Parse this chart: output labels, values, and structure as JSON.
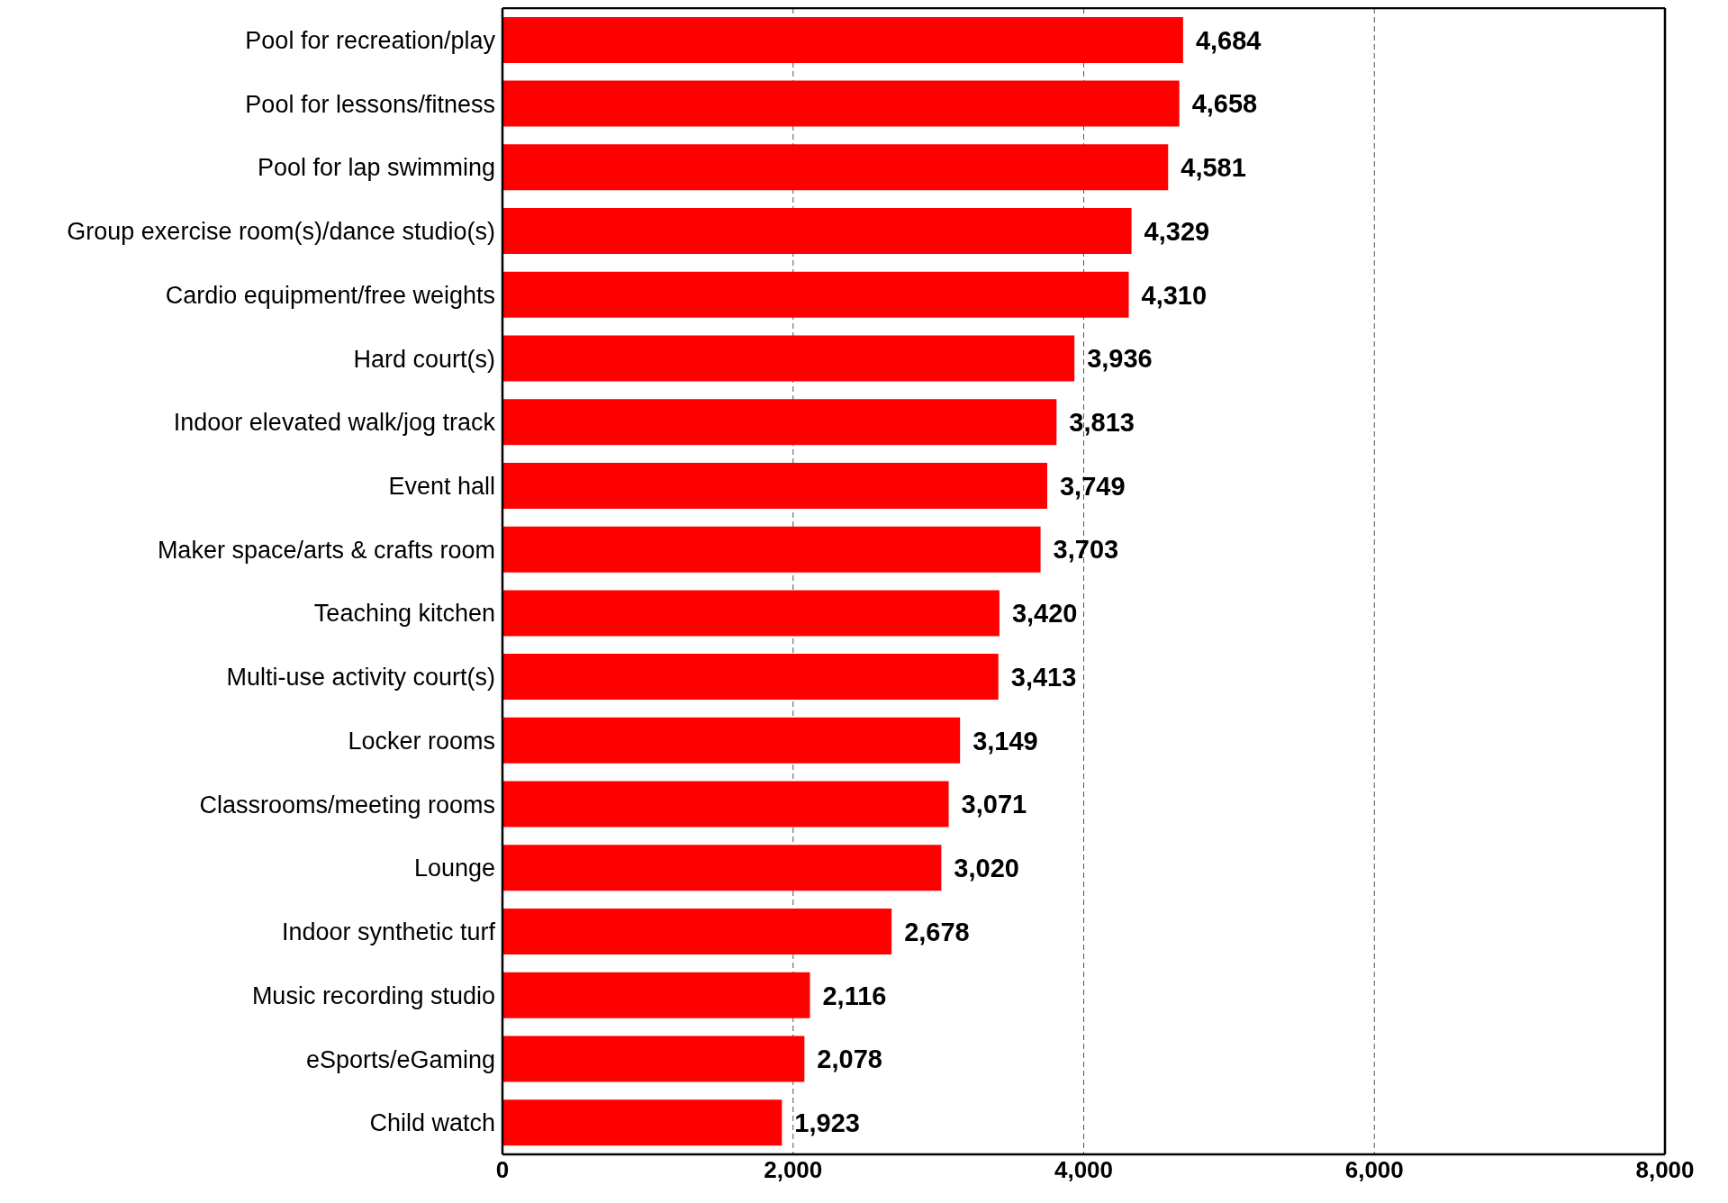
{
  "chart_data": {
    "type": "bar",
    "orientation": "horizontal",
    "categories": [
      "Pool for recreation/play",
      "Pool for lessons/fitness",
      "Pool for lap swimming",
      "Group exercise room(s)/dance studio(s)",
      "Cardio equipment/free weights",
      "Hard court(s)",
      "Indoor elevated walk/jog track",
      "Event hall",
      "Maker space/arts & crafts room",
      "Teaching kitchen",
      "Multi-use activity court(s)",
      "Locker rooms",
      "Classrooms/meeting rooms",
      "Lounge",
      "Indoor synthetic turf",
      "Music recording studio",
      "eSports/eGaming",
      "Child watch"
    ],
    "values": [
      4684,
      4658,
      4581,
      4329,
      4310,
      3936,
      3813,
      3749,
      3703,
      3420,
      3413,
      3149,
      3071,
      3020,
      2678,
      2116,
      2078,
      1923
    ],
    "color": "#ff0000",
    "xlim": [
      0,
      8000
    ],
    "xticks": [
      {
        "value": 0,
        "label": "0"
      },
      {
        "value": 2000,
        "label": "2,000"
      },
      {
        "value": 4000,
        "label": "4,000"
      },
      {
        "value": 6000,
        "label": "6,000"
      },
      {
        "value": 8000,
        "label": "8,000"
      }
    ],
    "value_labels": [
      "4,684",
      "4,658",
      "4,581",
      "4,329",
      "4,310",
      "3,936",
      "3,813",
      "3,749",
      "3,703",
      "3,420",
      "3,413",
      "3,149",
      "3,071",
      "3,020",
      "2,678",
      "2,116",
      "2,078",
      "1,923"
    ],
    "grid": "x"
  }
}
